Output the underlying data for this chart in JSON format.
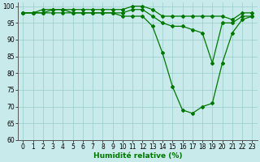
{
  "x": [
    0,
    1,
    2,
    3,
    4,
    5,
    6,
    7,
    8,
    9,
    10,
    11,
    12,
    13,
    14,
    15,
    16,
    17,
    18,
    19,
    20,
    21,
    22,
    23
  ],
  "line1": [
    98,
    98,
    99,
    99,
    99,
    99,
    99,
    99,
    99,
    99,
    99,
    100,
    100,
    99,
    97,
    97,
    97,
    97,
    97,
    97,
    97,
    96,
    98,
    98
  ],
  "line2": [
    98,
    98,
    98,
    99,
    99,
    98,
    98,
    98,
    98,
    98,
    98,
    99,
    99,
    97,
    95,
    94,
    94,
    93,
    92,
    83,
    95,
    95,
    97,
    97
  ],
  "line3": [
    98,
    98,
    98,
    98,
    98,
    98,
    98,
    98,
    98,
    98,
    97,
    97,
    97,
    94,
    86,
    76,
    69,
    68,
    70,
    71,
    83,
    92,
    96,
    97
  ],
  "bg_color": "#c8eaea",
  "grid_color": "#99cccc",
  "line_color": "#007700",
  "marker": "D",
  "marker_size": 2.0,
  "xlabel": "Humidité relative (%)",
  "ylim": [
    60,
    101
  ],
  "xlim": [
    -0.5,
    23.5
  ],
  "yticks": [
    60,
    65,
    70,
    75,
    80,
    85,
    90,
    95,
    100
  ],
  "xticks": [
    0,
    1,
    2,
    3,
    4,
    5,
    6,
    7,
    8,
    9,
    10,
    11,
    12,
    13,
    14,
    15,
    16,
    17,
    18,
    19,
    20,
    21,
    22,
    23
  ],
  "xlabel_fontsize": 6.5,
  "tick_fontsize": 5.5,
  "linewidth": 0.9
}
